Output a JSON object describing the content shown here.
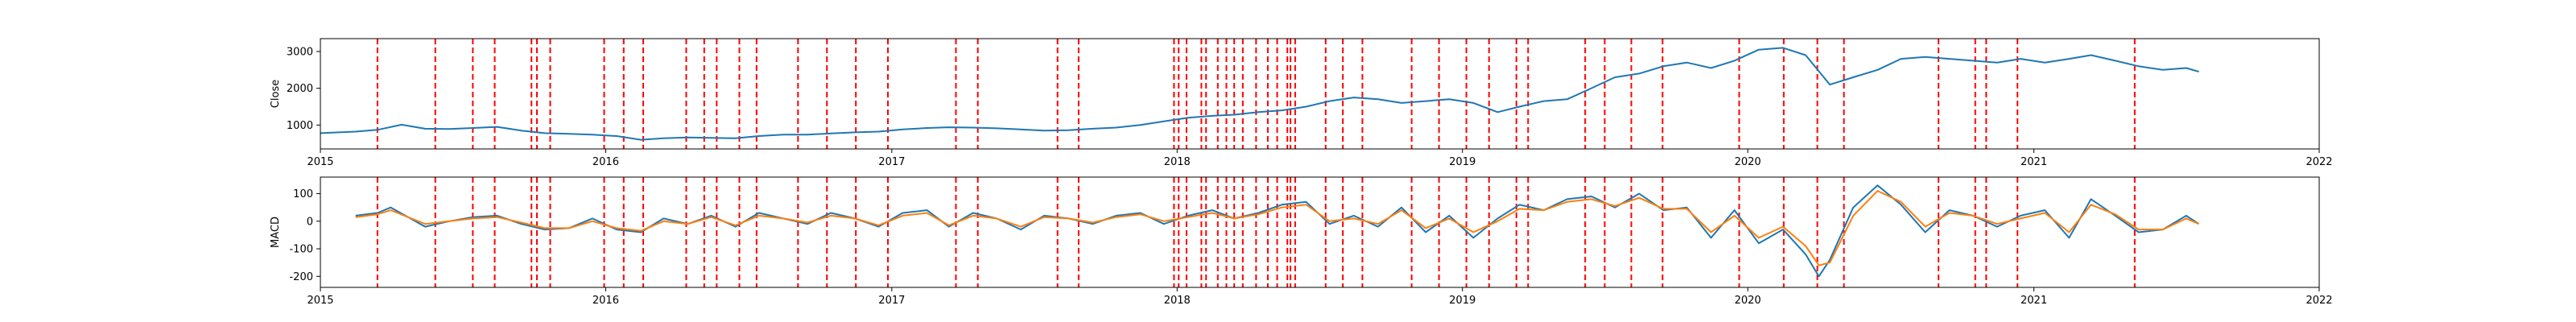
{
  "chart_data": [
    {
      "type": "line",
      "title": "",
      "xlabel": "",
      "ylabel": "Close",
      "xlim": [
        "2015-01-01",
        "2022-01-01"
      ],
      "ylim": [
        350,
        3350
      ],
      "x_ticks": [
        "2015",
        "2016",
        "2017",
        "2018",
        "2019",
        "2020",
        "2021",
        "2022"
      ],
      "y_ticks": [
        1000,
        2000,
        3000
      ],
      "grid": false,
      "colors": {
        "series": "#1f77b4",
        "vline": "#ff0000"
      },
      "series": [
        {
          "x": [
            "2015-01-01",
            "2015-02-15",
            "2015-03-15",
            "2015-04-15",
            "2015-05-15",
            "2015-06-15",
            "2015-07-15",
            "2015-08-15",
            "2015-09-15",
            "2015-10-15",
            "2015-11-15",
            "2015-12-15",
            "2016-01-15",
            "2016-02-15",
            "2016-03-15",
            "2016-04-15",
            "2016-05-15",
            "2016-06-15",
            "2016-07-15",
            "2016-08-15",
            "2016-09-15",
            "2016-10-15",
            "2016-11-15",
            "2016-12-15",
            "2017-01-15",
            "2017-02-15",
            "2017-03-15",
            "2017-04-15",
            "2017-05-15",
            "2017-06-15",
            "2017-07-15",
            "2017-08-15",
            "2017-09-15",
            "2017-10-15",
            "2017-11-15",
            "2017-12-15",
            "2018-01-15",
            "2018-02-15",
            "2018-03-15",
            "2018-04-15",
            "2018-05-15",
            "2018-06-15",
            "2018-07-15",
            "2018-08-15",
            "2018-09-15",
            "2018-10-15",
            "2018-11-15",
            "2018-12-15",
            "2019-01-15",
            "2019-02-15",
            "2019-03-15",
            "2019-04-15",
            "2019-05-15",
            "2019-06-15",
            "2019-07-15",
            "2019-08-15",
            "2019-09-15",
            "2019-10-15",
            "2019-11-15",
            "2019-12-15",
            "2020-01-15",
            "2020-02-15",
            "2020-03-15",
            "2020-04-15",
            "2020-05-15",
            "2020-06-15",
            "2020-07-15",
            "2020-08-15",
            "2020-09-15",
            "2020-10-15",
            "2020-11-15",
            "2020-12-15",
            "2021-01-15",
            "2021-02-15",
            "2021-03-15",
            "2021-04-15",
            "2021-05-15",
            "2021-06-15",
            "2021-07-15",
            "2021-07-31"
          ],
          "values": [
            780,
            820,
            870,
            1010,
            900,
            890,
            920,
            950,
            850,
            780,
            760,
            740,
            700,
            600,
            640,
            660,
            650,
            640,
            700,
            740,
            740,
            770,
            800,
            820,
            880,
            920,
            940,
            930,
            910,
            880,
            850,
            860,
            900,
            930,
            1000,
            1100,
            1200,
            1250,
            1280,
            1350,
            1400,
            1500,
            1650,
            1750,
            1700,
            1600,
            1650,
            1700,
            1600,
            1350,
            1500,
            1650,
            1700,
            2000,
            2300,
            2400,
            2600,
            2700,
            2550,
            2750,
            3050,
            3100,
            2900,
            2100,
            2300,
            2500,
            2800,
            2850,
            2800,
            2750,
            2700,
            2800,
            2700,
            2800,
            2900,
            2750,
            2600,
            2500,
            2550,
            2450
          ]
        }
      ]
    },
    {
      "type": "line",
      "title": "",
      "xlabel": "",
      "ylabel": "MACD",
      "xlim": [
        "2015-01-01",
        "2022-01-01"
      ],
      "ylim": [
        -240,
        160
      ],
      "x_ticks": [
        "2015",
        "2016",
        "2017",
        "2018",
        "2019",
        "2020",
        "2021",
        "2022"
      ],
      "y_ticks": [
        -200,
        -100,
        0,
        100
      ],
      "grid": false,
      "colors": {
        "macd": "#1f77b4",
        "signal": "#ff7f0e",
        "vline": "#ff0000"
      },
      "series": [
        {
          "x": [
            "2015-02-15",
            "2015-03-15",
            "2015-04-01",
            "2015-05-15",
            "2015-06-15",
            "2015-07-15",
            "2015-08-15",
            "2015-09-15",
            "2015-10-15",
            "2015-11-15",
            "2015-12-15",
            "2016-01-15",
            "2016-02-15",
            "2016-03-15",
            "2016-04-15",
            "2016-05-15",
            "2016-06-15",
            "2016-07-15",
            "2016-08-15",
            "2016-09-15",
            "2016-10-15",
            "2016-11-15",
            "2016-12-15",
            "2017-01-15",
            "2017-02-15",
            "2017-03-15",
            "2017-04-15",
            "2017-05-15",
            "2017-06-15",
            "2017-07-15",
            "2017-08-15",
            "2017-09-15",
            "2017-10-15",
            "2017-11-15",
            "2017-12-15",
            "2018-01-15",
            "2018-02-15",
            "2018-03-15",
            "2018-04-15",
            "2018-05-15",
            "2018-06-15",
            "2018-07-15",
            "2018-08-15",
            "2018-09-15",
            "2018-10-15",
            "2018-11-15",
            "2018-12-15",
            "2019-01-15",
            "2019-02-15",
            "2019-03-15",
            "2019-04-15",
            "2019-05-15",
            "2019-06-15",
            "2019-07-15",
            "2019-08-15",
            "2019-09-15",
            "2019-10-15",
            "2019-11-15",
            "2019-12-15",
            "2020-01-15",
            "2020-02-15",
            "2020-03-15",
            "2020-04-01",
            "2020-04-15",
            "2020-05-15",
            "2020-06-15",
            "2020-07-15",
            "2020-08-15",
            "2020-09-15",
            "2020-10-15",
            "2020-11-15",
            "2020-12-15",
            "2021-01-15",
            "2021-02-15",
            "2021-03-15",
            "2021-04-15",
            "2021-05-15",
            "2021-06-15",
            "2021-07-15",
            "2021-07-31"
          ],
          "values": [
            20,
            30,
            50,
            -20,
            0,
            15,
            20,
            -10,
            -30,
            -25,
            10,
            -30,
            -40,
            10,
            -10,
            20,
            -20,
            30,
            10,
            -10,
            30,
            10,
            -20,
            30,
            40,
            -20,
            30,
            10,
            -30,
            20,
            10,
            -10,
            20,
            30,
            -10,
            20,
            40,
            10,
            30,
            60,
            70,
            -10,
            20,
            -20,
            50,
            -40,
            20,
            -60,
            10,
            60,
            40,
            80,
            90,
            50,
            100,
            40,
            50,
            -60,
            40,
            -80,
            -30,
            -120,
            -200,
            -140,
            50,
            130,
            60,
            -40,
            40,
            20,
            -20,
            20,
            40,
            -60,
            80,
            20,
            -40,
            -30,
            20,
            -10
          ]
        },
        {
          "x": [
            "2015-02-15",
            "2015-03-15",
            "2015-04-01",
            "2015-05-15",
            "2015-06-15",
            "2015-07-15",
            "2015-08-15",
            "2015-09-15",
            "2015-10-15",
            "2015-11-15",
            "2015-12-15",
            "2016-01-15",
            "2016-02-15",
            "2016-03-15",
            "2016-04-15",
            "2016-05-15",
            "2016-06-15",
            "2016-07-15",
            "2016-08-15",
            "2016-09-15",
            "2016-10-15",
            "2016-11-15",
            "2016-12-15",
            "2017-01-15",
            "2017-02-15",
            "2017-03-15",
            "2017-04-15",
            "2017-05-15",
            "2017-06-15",
            "2017-07-15",
            "2017-08-15",
            "2017-09-15",
            "2017-10-15",
            "2017-11-15",
            "2017-12-15",
            "2018-01-15",
            "2018-02-15",
            "2018-03-15",
            "2018-04-15",
            "2018-05-15",
            "2018-06-15",
            "2018-07-15",
            "2018-08-15",
            "2018-09-15",
            "2018-10-15",
            "2018-11-15",
            "2018-12-15",
            "2019-01-15",
            "2019-02-15",
            "2019-03-15",
            "2019-04-15",
            "2019-05-15",
            "2019-06-15",
            "2019-07-15",
            "2019-08-15",
            "2019-09-15",
            "2019-10-15",
            "2019-11-15",
            "2019-12-15",
            "2020-01-15",
            "2020-02-15",
            "2020-03-15",
            "2020-04-01",
            "2020-04-15",
            "2020-05-15",
            "2020-06-15",
            "2020-07-15",
            "2020-08-15",
            "2020-09-15",
            "2020-10-15",
            "2020-11-15",
            "2020-12-15",
            "2021-01-15",
            "2021-02-15",
            "2021-03-15",
            "2021-04-15",
            "2021-05-15",
            "2021-06-15",
            "2021-07-15",
            "2021-07-31"
          ],
          "values": [
            15,
            25,
            40,
            -10,
            0,
            10,
            15,
            -5,
            -25,
            -25,
            0,
            -25,
            -35,
            0,
            -10,
            15,
            -15,
            20,
            10,
            -5,
            20,
            10,
            -15,
            20,
            30,
            -15,
            20,
            10,
            -20,
            15,
            10,
            -5,
            15,
            25,
            0,
            15,
            30,
            10,
            25,
            50,
            60,
            0,
            10,
            -10,
            40,
            -25,
            10,
            -40,
            0,
            45,
            40,
            70,
            80,
            55,
            85,
            45,
            45,
            -40,
            20,
            -60,
            -20,
            -90,
            -160,
            -150,
            20,
            110,
            70,
            -20,
            30,
            20,
            -10,
            10,
            30,
            -40,
            60,
            25,
            -30,
            -30,
            10,
            -10
          ]
        }
      ]
    }
  ],
  "vertical_lines": [
    "2015-03-15",
    "2015-05-28",
    "2015-07-15",
    "2015-08-12",
    "2015-09-28",
    "2015-10-05",
    "2015-10-22",
    "2015-12-30",
    "2016-01-24",
    "2016-02-18",
    "2016-04-13",
    "2016-05-06",
    "2016-05-22",
    "2016-06-20",
    "2016-07-12",
    "2016-09-03",
    "2016-10-10",
    "2016-11-16",
    "2016-12-27",
    "2017-03-24",
    "2017-04-21",
    "2017-08-01",
    "2017-08-28",
    "2017-12-28",
    "2018-01-03",
    "2018-01-13",
    "2018-02-01",
    "2018-02-07",
    "2018-02-22",
    "2018-03-05",
    "2018-03-15",
    "2018-03-26",
    "2018-04-12",
    "2018-04-27",
    "2018-05-09",
    "2018-05-22",
    "2018-05-26",
    "2018-06-01",
    "2018-07-10",
    "2018-08-01",
    "2018-08-26",
    "2018-10-28",
    "2018-12-02",
    "2019-01-06",
    "2019-02-04",
    "2019-03-11",
    "2019-03-26",
    "2019-06-07",
    "2019-07-02",
    "2019-08-05",
    "2019-09-14",
    "2019-12-21",
    "2020-02-16",
    "2020-03-30",
    "2020-05-03",
    "2020-09-01",
    "2020-10-18",
    "2020-11-01",
    "2020-12-11",
    "2021-05-10"
  ]
}
